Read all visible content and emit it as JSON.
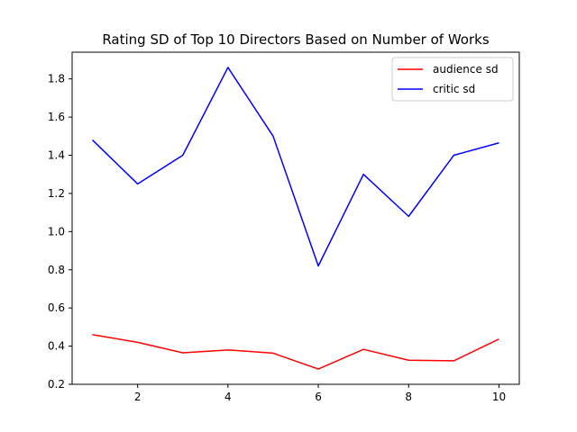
{
  "chart_data": {
    "type": "line",
    "title": "Rating SD of Top 10 Directors Based on Number of Works",
    "xlabel": "",
    "ylabel": "",
    "x": [
      1,
      2,
      3,
      4,
      5,
      6,
      7,
      8,
      9,
      10
    ],
    "xlim": [
      0.55,
      10.45
    ],
    "ylim": [
      0.2,
      1.94
    ],
    "xticks": [
      2,
      4,
      6,
      8,
      10
    ],
    "yticks": [
      0.2,
      0.4,
      0.6,
      0.8,
      1.0,
      1.2,
      1.4,
      1.6,
      1.8
    ],
    "xtick_labels": [
      "2",
      "4",
      "6",
      "8",
      "10"
    ],
    "ytick_labels": [
      "0.2",
      "0.4",
      "0.6",
      "0.8",
      "1.0",
      "1.2",
      "1.4",
      "1.6",
      "1.8"
    ],
    "grid": false,
    "legend_position": "top-right",
    "series": [
      {
        "name": "audience sd",
        "color": "#ff0000",
        "values": [
          0.46,
          0.42,
          0.365,
          0.38,
          0.363,
          0.28,
          0.383,
          0.326,
          0.323,
          0.437
        ]
      },
      {
        "name": "critic sd",
        "color": "#0000ff",
        "values": [
          1.48,
          1.25,
          1.4,
          1.86,
          1.5,
          0.82,
          1.3,
          1.08,
          1.4,
          1.465
        ]
      }
    ]
  }
}
